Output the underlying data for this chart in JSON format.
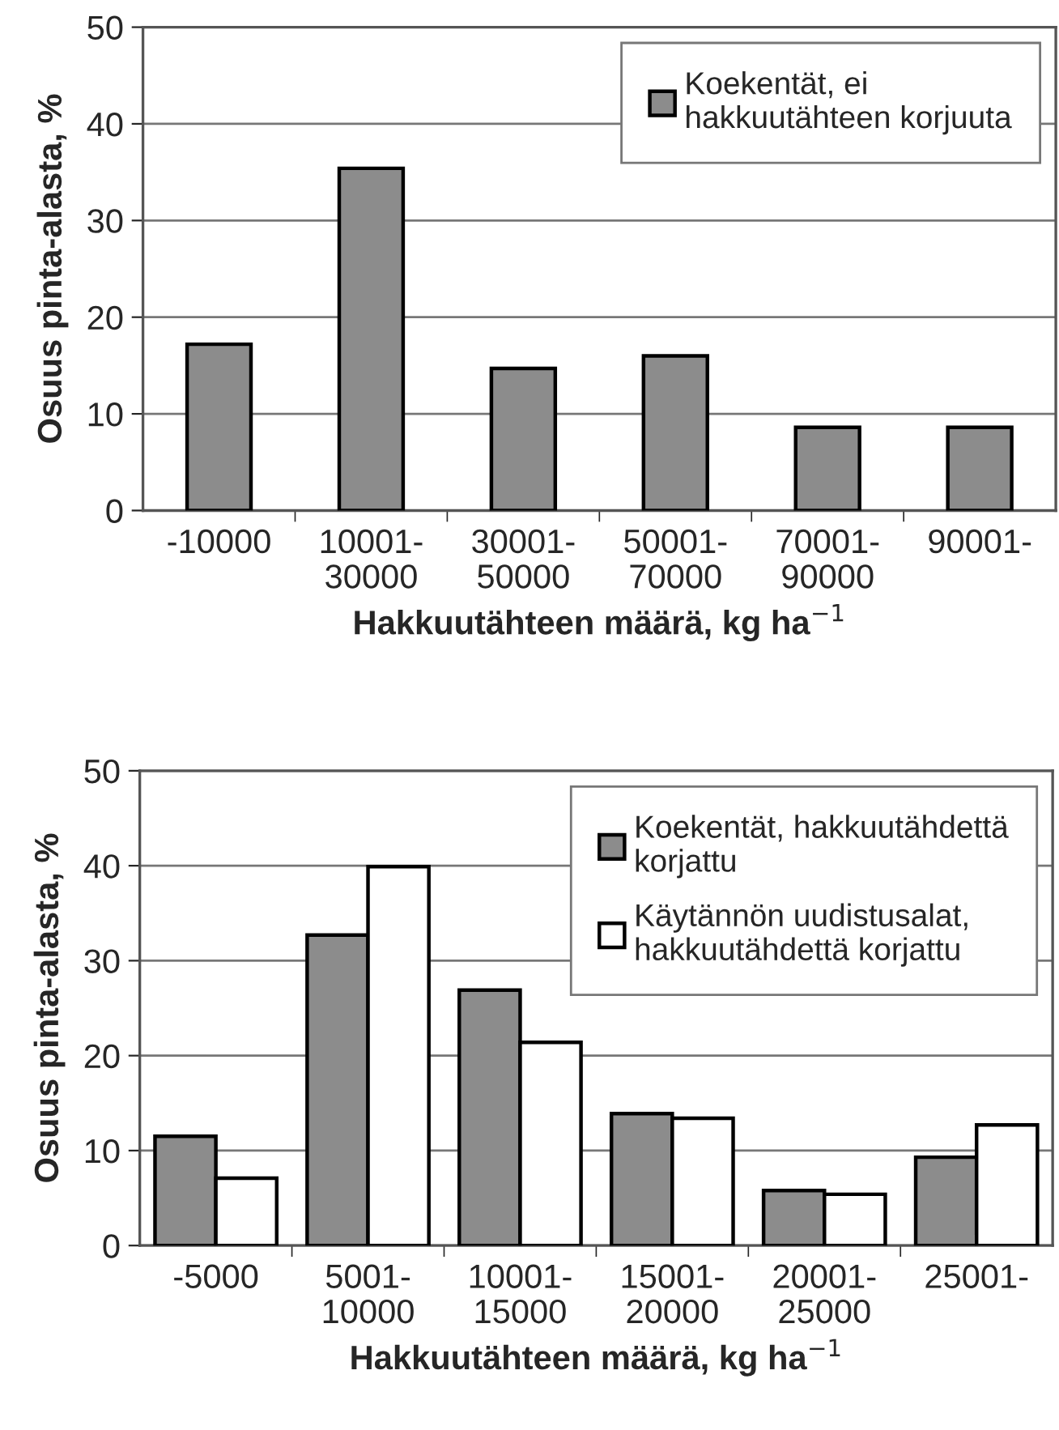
{
  "chart_data": [
    {
      "type": "bar",
      "xlabel": "Hakkuutähteen määrä, kg ha$^{−1}$",
      "ylabel": "Osuus pinta-alasta, %",
      "categories": [
        "-10000",
        "10001-\n30000",
        "30001-\n50000",
        "50001-\n70000",
        "70001-\n90000",
        "90001-"
      ],
      "series": [
        {
          "name": "Koekentät, ei\nhakkuutähteen korjuuta",
          "color": "#8c8c8c",
          "values": [
            17.2,
            35.4,
            14.7,
            16.0,
            8.6,
            8.6
          ]
        }
      ],
      "ylim": [
        0,
        50
      ],
      "yticks": [
        0,
        10,
        20,
        30,
        40,
        50
      ],
      "grid": "y",
      "legend": "top right"
    },
    {
      "type": "bar",
      "xlabel": "Hakkuutähteen määrä, kg ha$^{−1}$",
      "ylabel": "Osuus pinta-alasta, %",
      "categories": [
        "-5000",
        "5001-\n10000",
        "10001-\n15000",
        "15001-\n20000",
        "20001-\n25000",
        "25001-"
      ],
      "series": [
        {
          "name": "Koekentät, hakkuutähdettä\nkorjattu",
          "color": "#8c8c8c",
          "values": [
            11.5,
            32.7,
            26.9,
            13.9,
            5.8,
            9.3
          ]
        },
        {
          "name": "Käytännön uudistusalat,\nhakkuutähdettä korjattu",
          "color": "#ffffff",
          "values": [
            7.1,
            39.9,
            21.4,
            13.4,
            5.4,
            12.7
          ]
        }
      ],
      "ylim": [
        0,
        50
      ],
      "yticks": [
        0,
        10,
        20,
        30,
        40,
        50
      ],
      "grid": "y",
      "legend": "top right"
    }
  ]
}
